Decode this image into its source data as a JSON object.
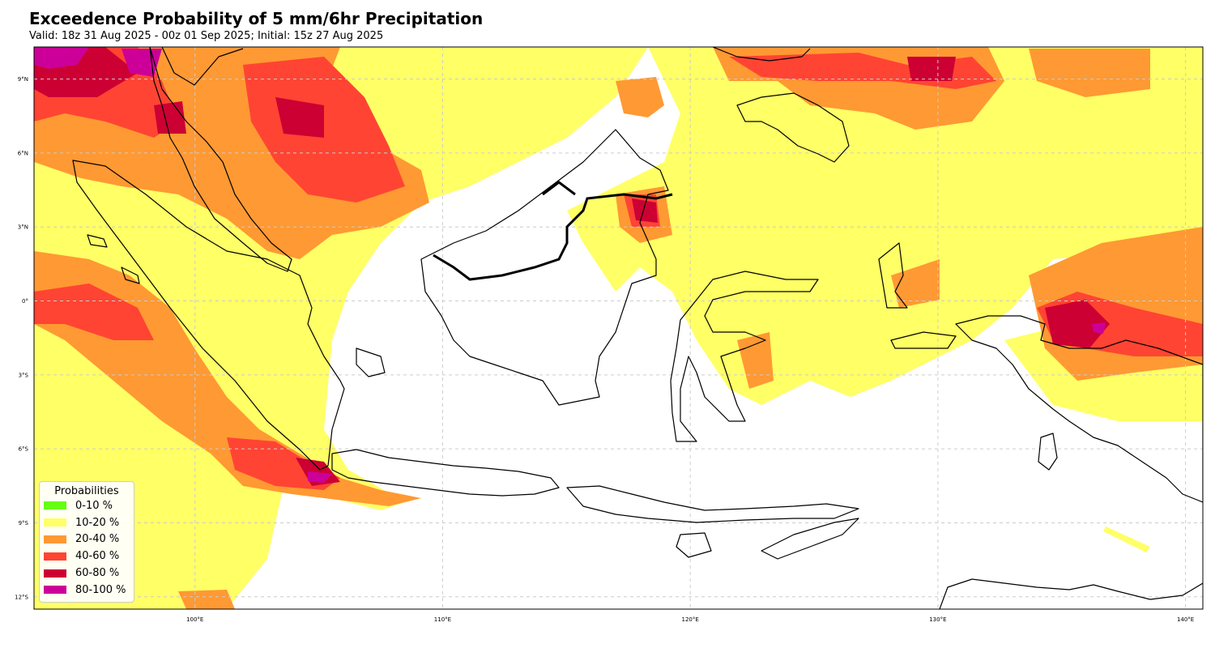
{
  "title": "Exceedence Probability of 5 mm/6hr Precipitation",
  "subtitle": "Valid: 18z 31 Aug 2025 - 00z 01 Sep 2025; Initial: 15z 27 Aug 2025",
  "map": {
    "extent": {
      "lon": [
        93.5,
        140.7
      ],
      "lat": [
        -12.5,
        10.3
      ]
    },
    "lon_ticks": [
      {
        "value": 100,
        "label": "100°E"
      },
      {
        "value": 110,
        "label": "110°E"
      },
      {
        "value": 120,
        "label": "120°E"
      },
      {
        "value": 130,
        "label": "130°E"
      },
      {
        "value": 140,
        "label": "140°E"
      }
    ],
    "lat_ticks": [
      {
        "value": 9,
        "label": "9°N"
      },
      {
        "value": 6,
        "label": "6°N"
      },
      {
        "value": 3,
        "label": "3°N"
      },
      {
        "value": 0,
        "label": "0°"
      },
      {
        "value": -3,
        "label": "3°S"
      },
      {
        "value": -6,
        "label": "6°S"
      },
      {
        "value": -9,
        "label": "9°S"
      },
      {
        "value": -12,
        "label": "12°S"
      }
    ]
  },
  "legend": {
    "title": "Probabilities",
    "items": [
      {
        "label": "0-10 %",
        "color": "#66ff11"
      },
      {
        "label": "10-20 %",
        "color": "#ffff66"
      },
      {
        "label": "20-40 %",
        "color": "#ff9933"
      },
      {
        "label": "40-60 %",
        "color": "#ff4433"
      },
      {
        "label": "60-80 %",
        "color": "#cc0033"
      },
      {
        "label": "80-100 %",
        "color": "#cc0099"
      }
    ]
  },
  "colors": {
    "p10_20": "#ffff66",
    "p20_40": "#ff9933",
    "p40_60": "#ff4433",
    "p60_80": "#cc0033",
    "p80_100": "#cc0099",
    "coast": "#000000",
    "grid": "#cccccc"
  }
}
